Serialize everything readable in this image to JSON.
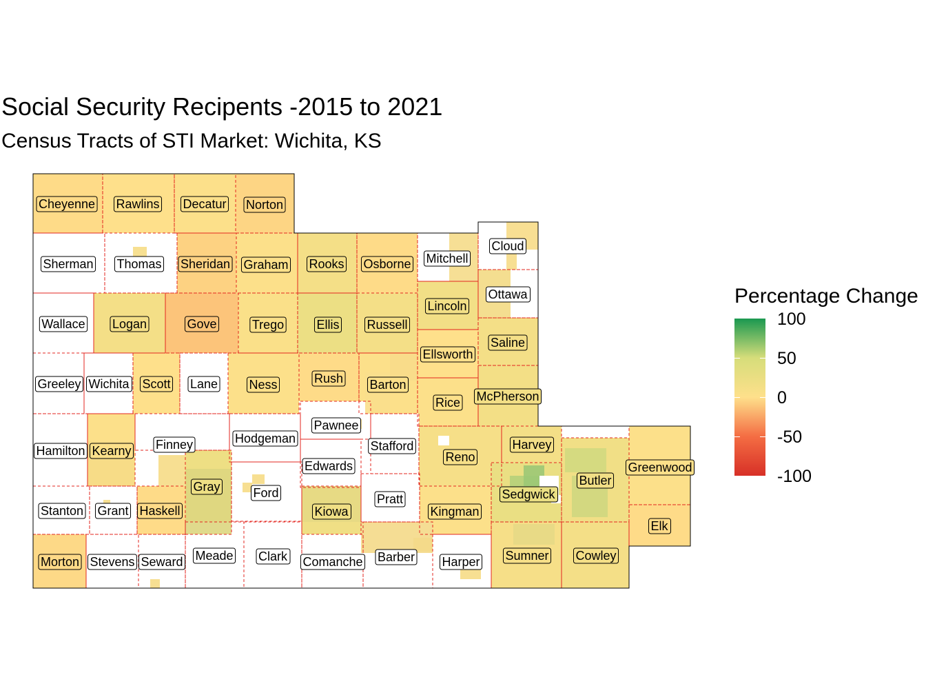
{
  "title": "Social Security Recipents -2015 to 2021",
  "subtitle": "Census Tracts of STI Market: Wichita, KS",
  "legend": {
    "title": "Percentage Change",
    "labels": [
      "100",
      "50",
      "0",
      "-50",
      "-100"
    ],
    "colors": [
      "#1a9850",
      "#d6dd7a",
      "#fee08b",
      "#f46d43",
      "#d73027"
    ]
  },
  "map": {
    "state": "Kansas",
    "counties": [
      {
        "name": "Cheyenne",
        "change": -2
      },
      {
        "name": "Rawlins",
        "change": 0
      },
      {
        "name": "Decatur",
        "change": 2
      },
      {
        "name": "Norton",
        "change": -5
      },
      {
        "name": "Sherman",
        "change": null
      },
      {
        "name": "Thomas",
        "change": null
      },
      {
        "name": "Sheridan",
        "change": -6
      },
      {
        "name": "Graham",
        "change": 2
      },
      {
        "name": "Rooks",
        "change": 12
      },
      {
        "name": "Osborne",
        "change": -2
      },
      {
        "name": "Mitchell",
        "change": null
      },
      {
        "name": "Cloud",
        "change": null
      },
      {
        "name": "Wallace",
        "change": null
      },
      {
        "name": "Logan",
        "change": 12
      },
      {
        "name": "Gove",
        "change": -12
      },
      {
        "name": "Trego",
        "change": 5
      },
      {
        "name": "Ellis",
        "change": 22
      },
      {
        "name": "Russell",
        "change": 12
      },
      {
        "name": "Lincoln",
        "change": 15
      },
      {
        "name": "Ottawa",
        "change": null
      },
      {
        "name": "Saline",
        "change": 12
      },
      {
        "name": "Ellsworth",
        "change": 0
      },
      {
        "name": "Greeley",
        "change": null
      },
      {
        "name": "Wichita",
        "change": null
      },
      {
        "name": "Scott",
        "change": 0
      },
      {
        "name": "Lane",
        "change": null
      },
      {
        "name": "Ness",
        "change": 3
      },
      {
        "name": "Rush",
        "change": -2
      },
      {
        "name": "Barton",
        "change": 3
      },
      {
        "name": "Rice",
        "change": 3
      },
      {
        "name": "McPherson",
        "change": 14
      },
      {
        "name": "Hamilton",
        "change": null
      },
      {
        "name": "Kearny",
        "change": 2
      },
      {
        "name": "Finney",
        "change": null
      },
      {
        "name": "Hodgeman",
        "change": null
      },
      {
        "name": "Pawnee",
        "change": null
      },
      {
        "name": "Stafford",
        "change": null
      },
      {
        "name": "Edwards",
        "change": null
      },
      {
        "name": "Reno",
        "change": 10
      },
      {
        "name": "Harvey",
        "change": 12
      },
      {
        "name": "Butler",
        "change": 16
      },
      {
        "name": "Greenwood",
        "change": 3
      },
      {
        "name": "Stanton",
        "change": null
      },
      {
        "name": "Grant",
        "change": null
      },
      {
        "name": "Haskell",
        "change": -2
      },
      {
        "name": "Gray",
        "change": 20
      },
      {
        "name": "Ford",
        "change": null
      },
      {
        "name": "Kiowa",
        "change": 18
      },
      {
        "name": "Pratt",
        "change": null
      },
      {
        "name": "Kingman",
        "change": 3
      },
      {
        "name": "Sedgwick",
        "change": 25
      },
      {
        "name": "Elk",
        "change": -2
      },
      {
        "name": "Morton",
        "change": -3
      },
      {
        "name": "Stevens",
        "change": null
      },
      {
        "name": "Seward",
        "change": null
      },
      {
        "name": "Meade",
        "change": null
      },
      {
        "name": "Clark",
        "change": null
      },
      {
        "name": "Comanche",
        "change": null
      },
      {
        "name": "Barber",
        "change": null
      },
      {
        "name": "Harper",
        "change": null
      },
      {
        "name": "Sumner",
        "change": 10
      },
      {
        "name": "Cowley",
        "change": 12
      }
    ]
  }
}
